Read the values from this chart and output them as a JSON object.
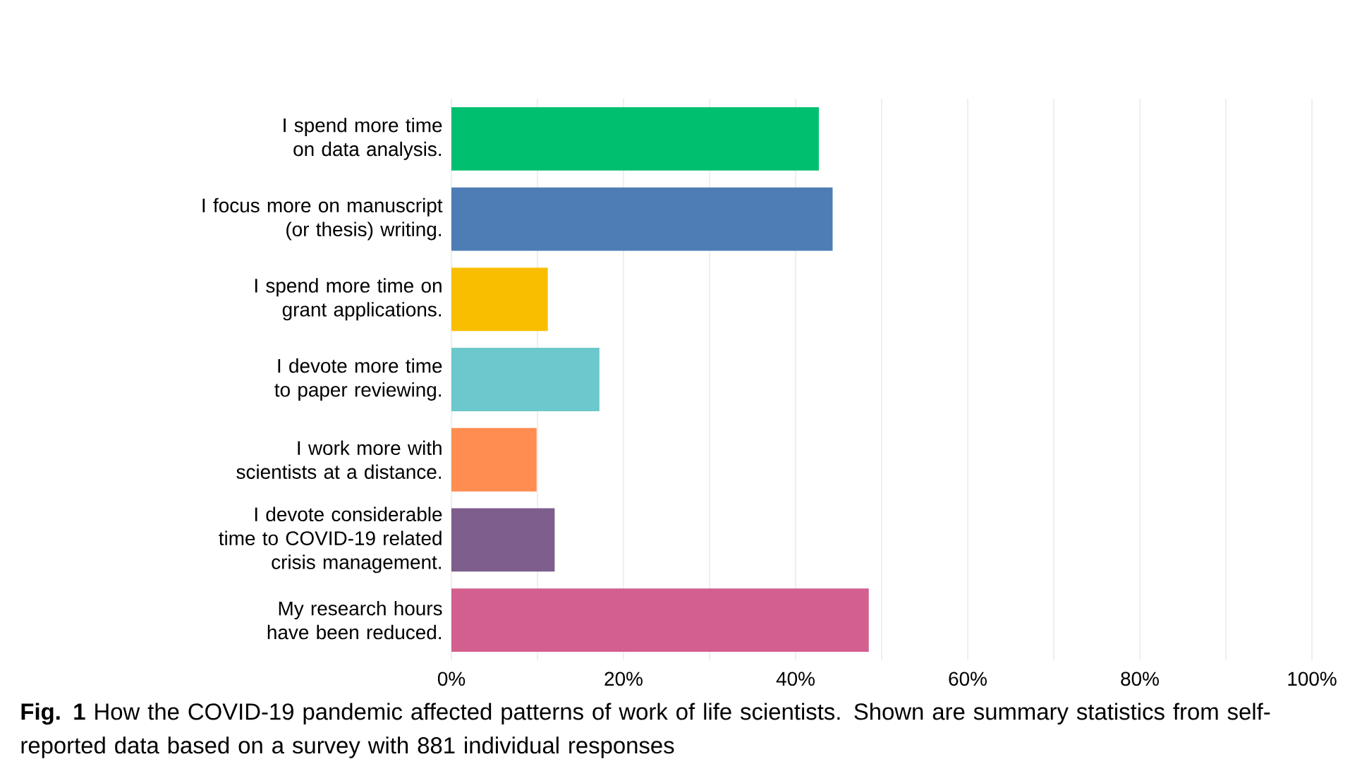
{
  "chart_data": {
    "type": "bar",
    "orientation": "horizontal",
    "categories": [
      "I spend more time on data analysis.",
      "I focus more on manuscript (or thesis) writing.",
      "I spend more time on grant applications.",
      "I devote more time to paper reviewing.",
      "I work more with scientists at a distance.",
      "I devote considerable time to COVID-19 related crisis management.",
      "My research hours have been reduced."
    ],
    "values": [
      42.7,
      44.3,
      11.2,
      17.2,
      9.9,
      12.0,
      48.5
    ],
    "colors": [
      "#00bf6f",
      "#4e7db5",
      "#f9be00",
      "#6cc8cc",
      "#ff8c50",
      "#7d5e8d",
      "#d35f8e"
    ],
    "xlim": [
      0,
      100
    ],
    "xticks": [
      {
        "value": 0,
        "label": "0%"
      },
      {
        "value": 10,
        "label": null
      },
      {
        "value": 20,
        "label": "20%"
      },
      {
        "value": 30,
        "label": null
      },
      {
        "value": 40,
        "label": "40%"
      },
      {
        "value": 50,
        "label": null
      },
      {
        "value": 60,
        "label": "60%"
      },
      {
        "value": 70,
        "label": null
      },
      {
        "value": 80,
        "label": "80%"
      },
      {
        "value": 90,
        "label": null
      },
      {
        "value": 100,
        "label": "100%"
      }
    ],
    "grid": "x",
    "annotations": [
      "**Fig. 1** How the COVID-19 pandemic affected patterns of work of life scientists. Shown are summary statistics from self-reported data based on a survey with 881 individual responses"
    ]
  }
}
